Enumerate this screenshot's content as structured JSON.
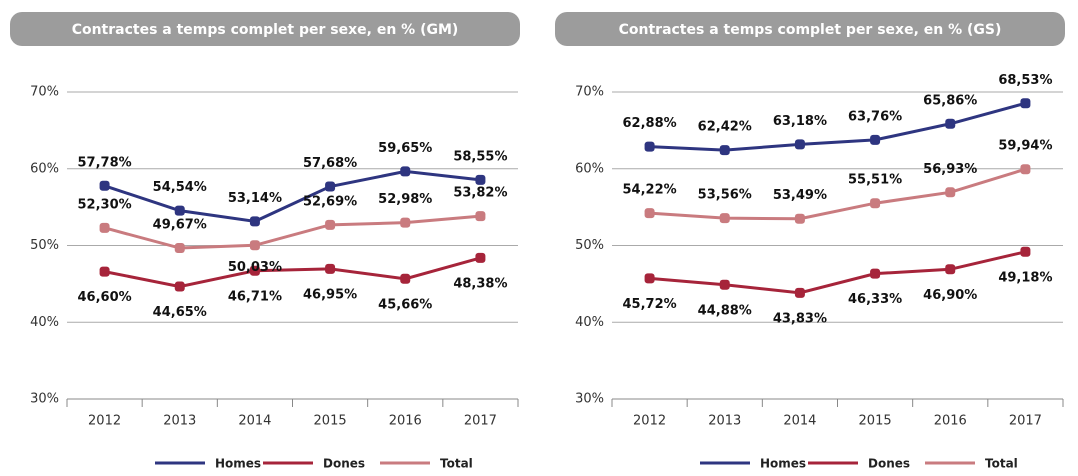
{
  "chart_data": [
    {
      "type": "line",
      "title": "Contractes a temps complet per sexe, en % (GM)",
      "categories": [
        "2012",
        "2013",
        "2014",
        "2015",
        "2016",
        "2017"
      ],
      "ylim": [
        30,
        70
      ],
      "yticks": [
        {
          "value": 30,
          "label": "30%"
        },
        {
          "value": 40,
          "label": "40%"
        },
        {
          "value": 50,
          "label": "50%"
        },
        {
          "value": 60,
          "label": "60%"
        },
        {
          "value": 70,
          "label": "70%"
        }
      ],
      "grid": true,
      "legend": "bottom",
      "series": [
        {
          "name": "Homes",
          "color": "#2e3580",
          "values": [
            57.78,
            54.54,
            53.14,
            57.68,
            59.65,
            58.55
          ],
          "value_labels": [
            "57,78%",
            "54,54%",
            "53,14%",
            "57,68%",
            "59,65%",
            "58,55%"
          ]
        },
        {
          "name": "Dones",
          "color": "#a6243a",
          "values": [
            46.6,
            44.65,
            46.71,
            46.95,
            45.66,
            48.38
          ],
          "value_labels": [
            "46,60%",
            "44,65%",
            "46,71%",
            "46,95%",
            "45,66%",
            "48,38%"
          ]
        },
        {
          "name": "Total",
          "color": "#c97b7f",
          "values": [
            52.3,
            49.67,
            50.03,
            52.69,
            52.98,
            53.82
          ],
          "value_labels": [
            "52,30%",
            "49,67%",
            "50,03%",
            "52,69%",
            "52,98%",
            "53,82%"
          ]
        }
      ]
    },
    {
      "type": "line",
      "title": "Contractes a temps complet per sexe, en % (GS)",
      "categories": [
        "2012",
        "2013",
        "2014",
        "2015",
        "2016",
        "2017"
      ],
      "ylim": [
        30,
        70
      ],
      "yticks": [
        {
          "value": 30,
          "label": "30%"
        },
        {
          "value": 40,
          "label": "40%"
        },
        {
          "value": 50,
          "label": "50%"
        },
        {
          "value": 60,
          "label": "60%"
        },
        {
          "value": 70,
          "label": "70%"
        }
      ],
      "grid": true,
      "legend": "bottom",
      "series": [
        {
          "name": "Homes",
          "color": "#2e3580",
          "values": [
            62.88,
            62.42,
            63.18,
            63.76,
            65.86,
            68.53
          ],
          "value_labels": [
            "62,88%",
            "62,42%",
            "63,18%",
            "63,76%",
            "65,86%",
            "68,53%"
          ]
        },
        {
          "name": "Dones",
          "color": "#a6243a",
          "values": [
            45.72,
            44.88,
            43.83,
            46.33,
            46.9,
            49.18
          ],
          "value_labels": [
            "45,72%",
            "44,88%",
            "43,83%",
            "46,33%",
            "46,90%",
            "49,18%"
          ]
        },
        {
          "name": "Total",
          "color": "#c97b7f",
          "values": [
            54.22,
            53.56,
            53.49,
            55.51,
            56.93,
            59.94
          ],
          "value_labels": [
            "54,22%",
            "53,56%",
            "53,49%",
            "55,51%",
            "56,93%",
            "59,94%"
          ]
        }
      ]
    }
  ]
}
